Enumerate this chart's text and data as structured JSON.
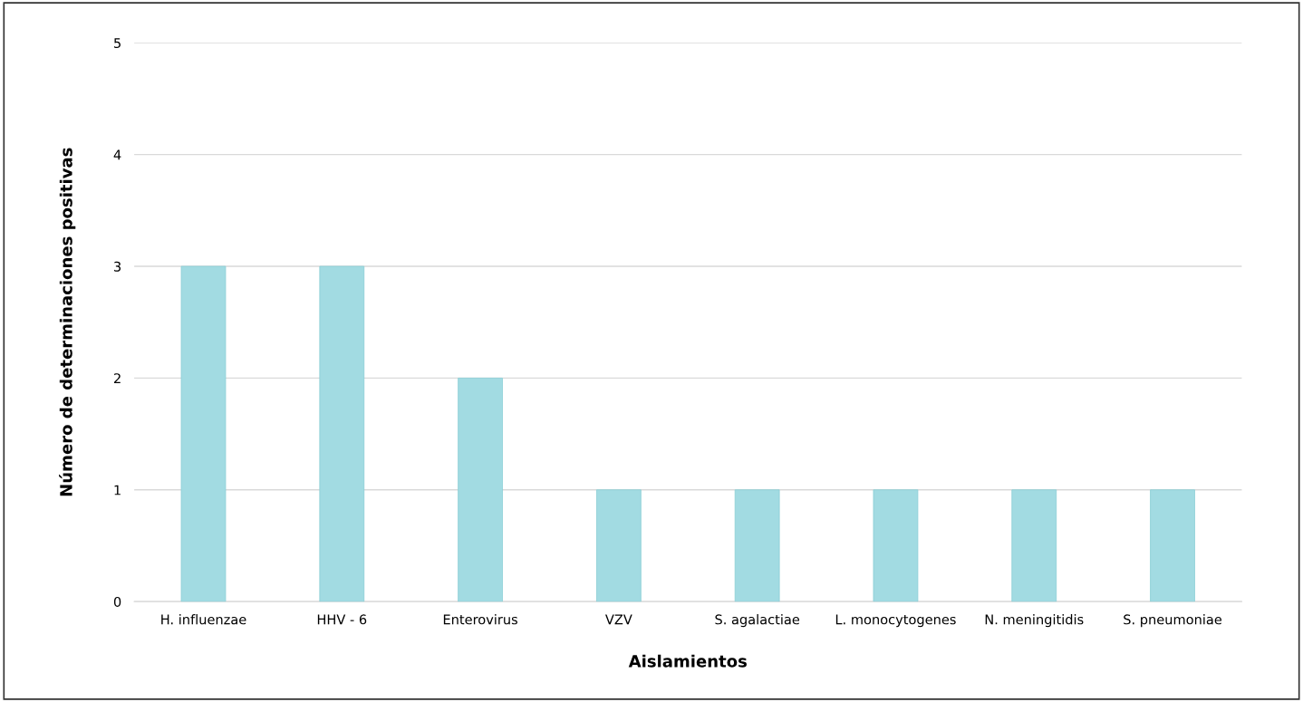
{
  "chart_data": {
    "type": "bar",
    "xlabel": "Aislamientos",
    "ylabel": "Número de determinaciones positivas",
    "categories": [
      "H. influenzae",
      "HHV - 6",
      "Enterovirus",
      "VZV",
      "S. agalactiae",
      "L. monocytogenes",
      "N. meningitidis",
      "S. pneumoniae"
    ],
    "values": [
      3,
      3,
      2,
      1,
      1,
      1,
      1,
      1
    ],
    "color": "#a2dbe2",
    "ylim": [
      0,
      5
    ],
    "yticks": [
      0,
      1,
      2,
      3,
      4,
      5
    ],
    "grid": "y"
  }
}
